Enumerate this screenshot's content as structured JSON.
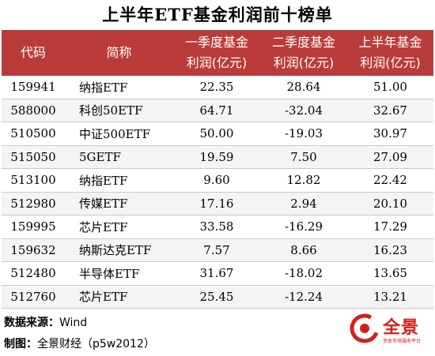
{
  "title": "上半年ETF基金利润前十榜单",
  "headers": [
    [
      "代码",
      ""
    ],
    [
      "简称",
      ""
    ],
    [
      "一季度基金",
      "利润(亿元)"
    ],
    [
      "二季度基金",
      "利润(亿元)"
    ],
    [
      "上半年基金",
      "利润(亿元)"
    ]
  ],
  "rows": [
    {
      "code": "159941",
      "name": "纳指ETF",
      "q1": "22.35",
      "q2": "28.64",
      "h1": "51.00"
    },
    {
      "code": "588000",
      "name": "科创50ETF",
      "q1": "64.71",
      "q2": "-32.04",
      "h1": "32.67"
    },
    {
      "code": "510500",
      "name": "中证500ETF",
      "q1": "50.00",
      "q2": "-19.03",
      "h1": "30.97"
    },
    {
      "code": "515050",
      "name": "5GETF",
      "q1": "19.59",
      "q2": "7.50",
      "h1": "27.09"
    },
    {
      "code": "513100",
      "name": "纳指ETF",
      "q1": "9.60",
      "q2": "12.82",
      "h1": "22.42"
    },
    {
      "code": "512980",
      "name": "传媒ETF",
      "q1": "17.16",
      "q2": "2.94",
      "h1": "20.10"
    },
    {
      "code": "159995",
      "name": "芯片ETF",
      "q1": "33.58",
      "q2": "-16.29",
      "h1": "17.29"
    },
    {
      "code": "159632",
      "name": "纳斯达克ETF",
      "q1": "7.57",
      "q2": "8.66",
      "h1": "16.23"
    },
    {
      "code": "512480",
      "name": "半导体ETF",
      "q1": "31.67",
      "q2": "-18.02",
      "h1": "13.65"
    },
    {
      "code": "512760",
      "name": "芯片ETF",
      "q1": "25.45",
      "q2": "-12.24",
      "h1": "13.21"
    }
  ],
  "footer": {
    "source_label": "数据来源：",
    "source_value": "Wind",
    "maker_label": "制图：",
    "maker_value": "全景财经（p5w2012）"
  },
  "logo": {
    "text": "全景",
    "subtitle": "资本市场服务平台"
  },
  "colors": {
    "header_bg": "#b93c3a",
    "brand": "#d0211c"
  }
}
